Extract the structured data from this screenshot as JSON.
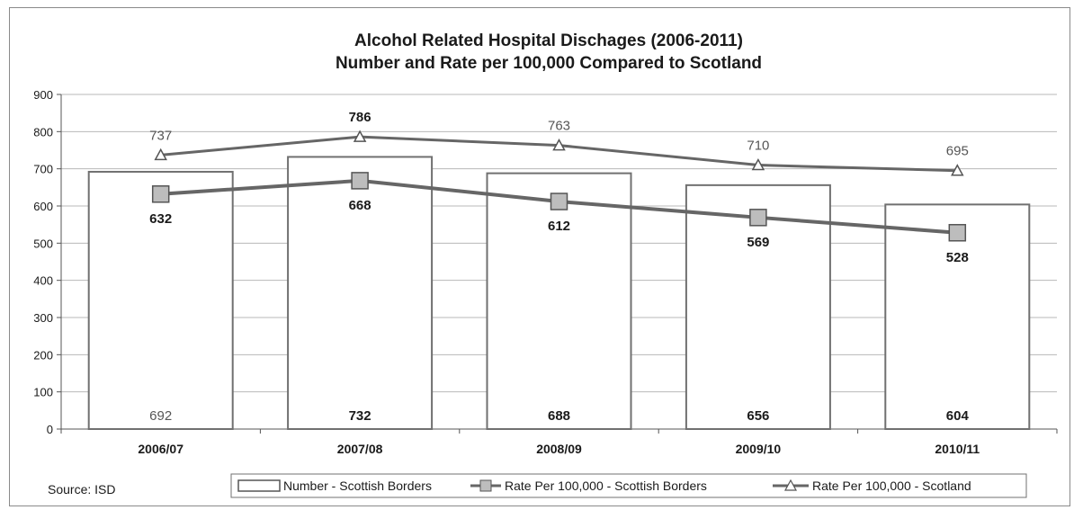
{
  "chart_data": {
    "type": "bar",
    "title": "Alcohol Related Hospital Dischages (2006-2011)",
    "subtitle": "Number and Rate per 100,000 Compared to Scotland",
    "categories": [
      "2006/07",
      "2007/08",
      "2008/09",
      "2009/10",
      "2010/11"
    ],
    "ylim": [
      0,
      900
    ],
    "yticks": [
      "0",
      "100",
      "200",
      "300",
      "400",
      "500",
      "600",
      "700",
      "800",
      "900"
    ],
    "grid": true,
    "legend_position": "bottom",
    "series": [
      {
        "name": "Number - Scottish Borders",
        "kind": "bar",
        "values": [
          692,
          732,
          688,
          656,
          604
        ],
        "labels": [
          "692",
          "732",
          "688",
          "656",
          "604"
        ],
        "color": "#ffffff"
      },
      {
        "name": "Rate Per 100,000  - Scottish Borders",
        "kind": "line",
        "marker": "square",
        "values": [
          632,
          668,
          612,
          569,
          528
        ],
        "labels": [
          "632",
          "668",
          "612",
          "569",
          "528"
        ],
        "color": "#666666"
      },
      {
        "name": "Rate Per 100,000  - Scotland",
        "kind": "line",
        "marker": "triangle",
        "values": [
          737,
          786,
          763,
          710,
          695
        ],
        "labels": [
          "737",
          "786",
          "763",
          "710",
          "695"
        ],
        "color": "#666666"
      }
    ]
  },
  "footer": {
    "source": "Source: ISD"
  }
}
